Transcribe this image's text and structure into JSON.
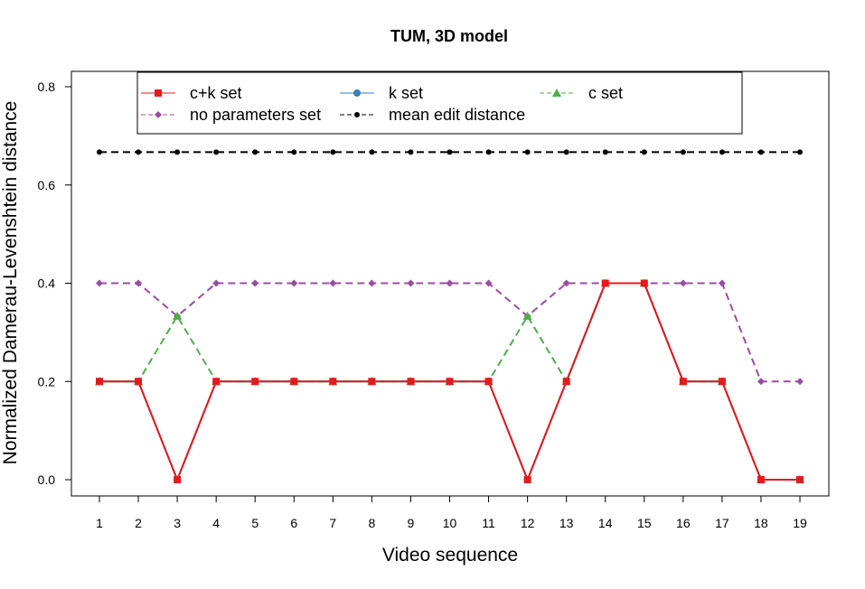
{
  "chart_data": {
    "type": "line",
    "title": "TUM, 3D model",
    "xlabel": "Video sequence",
    "ylabel": "Normalized Damerau-Levenshtein distance",
    "x": [
      1,
      2,
      3,
      4,
      5,
      6,
      7,
      8,
      9,
      10,
      11,
      12,
      13,
      14,
      15,
      16,
      17,
      18,
      19
    ],
    "xlim": [
      1,
      19
    ],
    "ylim": [
      0,
      0.8
    ],
    "yticks": [
      0.0,
      0.2,
      0.4,
      0.6,
      0.8
    ],
    "ytick_labels": [
      "0.0",
      "0.2",
      "0.4",
      "0.6",
      "0.8"
    ],
    "legend_position": "top",
    "grid": false,
    "series": [
      {
        "name": "c+k set",
        "color": "#e41a1c",
        "marker": "square",
        "dashed": false,
        "values": [
          0.2,
          0.2,
          0.0,
          0.2,
          0.2,
          0.2,
          0.2,
          0.2,
          0.2,
          0.2,
          0.2,
          0.0,
          0.2,
          0.4,
          0.4,
          0.2,
          0.2,
          0.0,
          0.0
        ]
      },
      {
        "name": "k set",
        "color": "#377eb8",
        "marker": "circle",
        "dashed": false,
        "values": [
          0.2,
          0.2,
          0.0,
          0.2,
          0.2,
          0.2,
          0.2,
          0.2,
          0.2,
          0.2,
          0.2,
          0.0,
          0.2,
          0.4,
          0.4,
          0.2,
          0.2,
          0.0,
          0.0
        ]
      },
      {
        "name": "c set",
        "color": "#4daf4a",
        "marker": "triangle",
        "dashed": true,
        "values": [
          0.2,
          0.2,
          0.333,
          0.2,
          0.2,
          0.2,
          0.2,
          0.2,
          0.2,
          0.2,
          0.2,
          0.333,
          0.2,
          0.4,
          0.4,
          0.2,
          0.2,
          0.0,
          0.0
        ]
      },
      {
        "name": "no parameters set",
        "color": "#984ea3",
        "marker": "diamond",
        "dashed": true,
        "values": [
          0.4,
          0.4,
          0.333,
          0.4,
          0.4,
          0.4,
          0.4,
          0.4,
          0.4,
          0.4,
          0.4,
          0.333,
          0.4,
          0.4,
          0.4,
          0.4,
          0.4,
          0.2,
          0.2
        ]
      },
      {
        "name": "mean edit distance",
        "color": "#000000",
        "marker": "dot",
        "dashed": true,
        "values": [
          0.667,
          0.667,
          0.667,
          0.667,
          0.667,
          0.667,
          0.667,
          0.667,
          0.667,
          0.667,
          0.667,
          0.667,
          0.667,
          0.667,
          0.667,
          0.667,
          0.667,
          0.667,
          0.667
        ]
      }
    ]
  }
}
